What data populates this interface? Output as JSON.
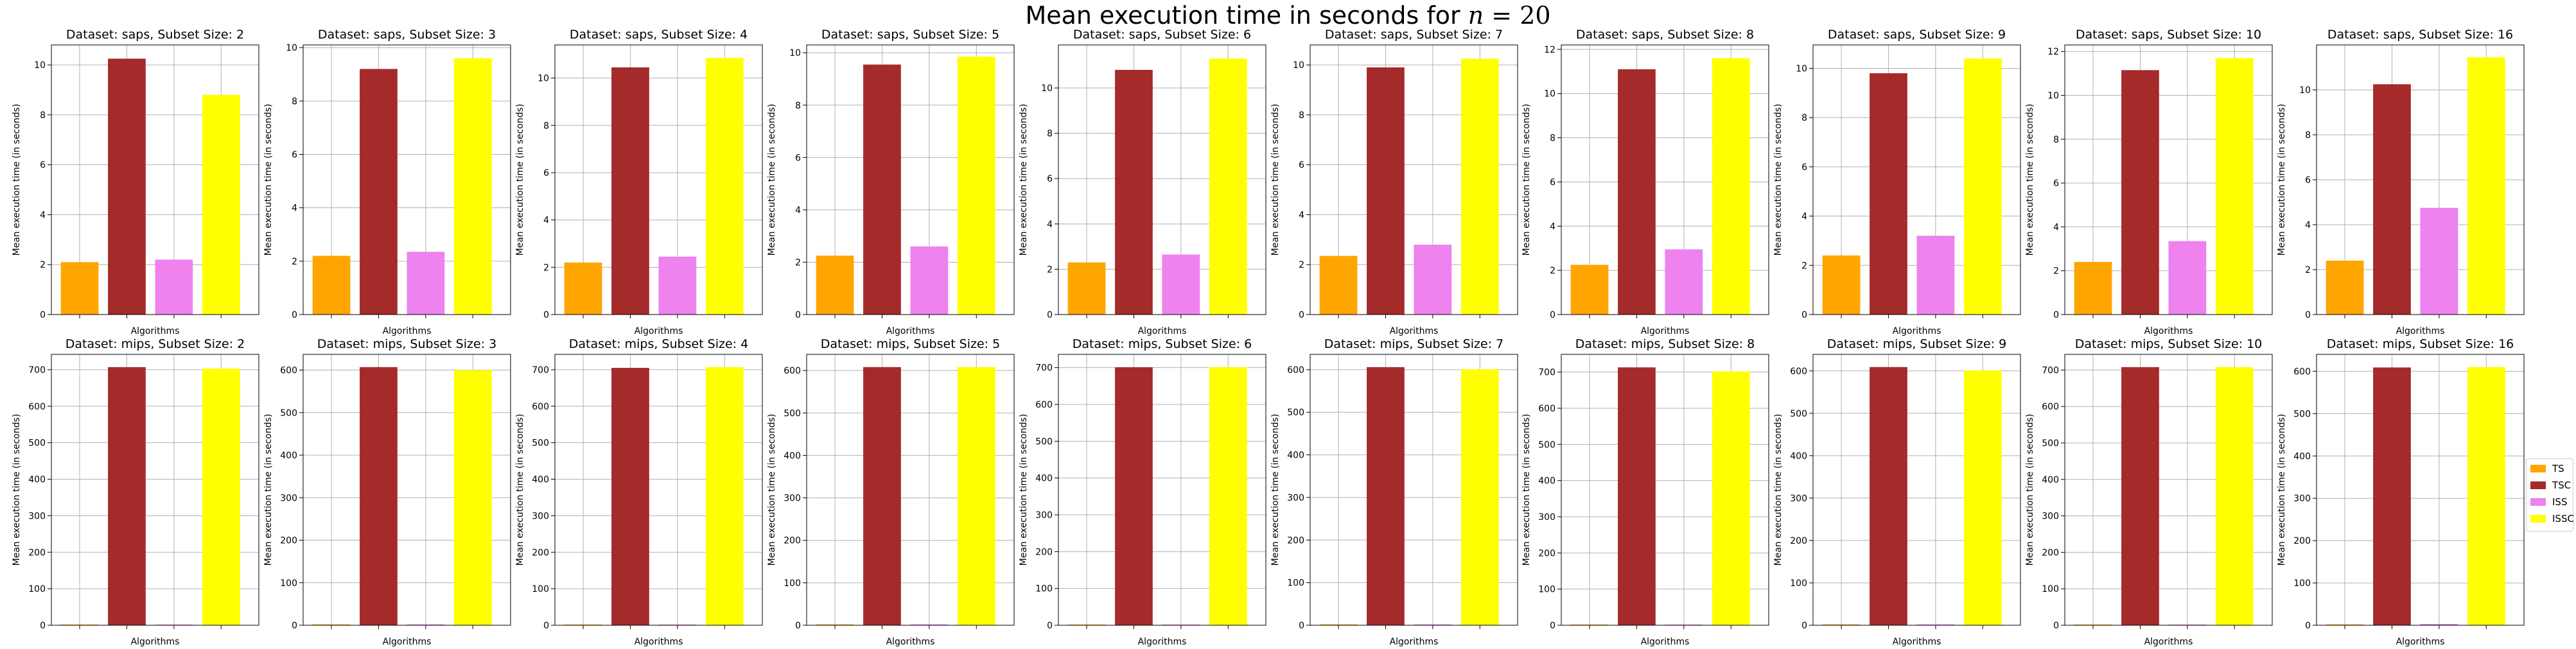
{
  "figure": {
    "title_prefix": "Mean execution time in seconds for ",
    "title_var": "n",
    "title_eq": " = ",
    "title_num": "20"
  },
  "legend": {
    "placement": "right-center",
    "items": [
      {
        "label": "TS",
        "color": "#FFA500"
      },
      {
        "label": "TSC",
        "color": "#A52A2A"
      },
      {
        "label": "ISS",
        "color": "#EE82EE"
      },
      {
        "label": "ISSC",
        "color": "#FFFF00"
      }
    ]
  },
  "chart_data": [
    {
      "type": "bar",
      "title": "Dataset: saps, Subset Size: 2",
      "xlabel": "Algorithms",
      "ylabel": "Mean execution time (in seconds)",
      "categories": [
        "TS",
        "TSC",
        "ISS",
        "ISSC"
      ],
      "values": [
        2.1,
        10.25,
        2.2,
        8.8
      ],
      "ylim": [
        0,
        10.8
      ],
      "yticks": [
        0,
        2,
        4,
        6,
        8,
        10
      ],
      "grid": true
    },
    {
      "type": "bar",
      "title": "Dataset: saps, Subset Size: 3",
      "xlabel": "Algorithms",
      "ylabel": "Mean execution time (in seconds)",
      "categories": [
        "TS",
        "TSC",
        "ISS",
        "ISSC"
      ],
      "values": [
        2.2,
        9.2,
        2.35,
        9.6
      ],
      "ylim": [
        0,
        10.1
      ],
      "yticks": [
        0,
        2,
        4,
        6,
        8,
        10
      ],
      "grid": true
    },
    {
      "type": "bar",
      "title": "Dataset: saps, Subset Size: 4",
      "xlabel": "Algorithms",
      "ylabel": "Mean execution time (in seconds)",
      "categories": [
        "TS",
        "TSC",
        "ISS",
        "ISSC"
      ],
      "values": [
        2.2,
        10.45,
        2.45,
        10.85
      ],
      "ylim": [
        0,
        11.4
      ],
      "yticks": [
        0,
        2,
        4,
        6,
        8,
        10
      ],
      "grid": true
    },
    {
      "type": "bar",
      "title": "Dataset: saps, Subset Size: 5",
      "xlabel": "Algorithms",
      "ylabel": "Mean execution time (in seconds)",
      "categories": [
        "TS",
        "TSC",
        "ISS",
        "ISSC"
      ],
      "values": [
        2.25,
        9.55,
        2.6,
        9.85
      ],
      "ylim": [
        0,
        10.3
      ],
      "yticks": [
        0,
        2,
        4,
        6,
        8,
        10
      ],
      "grid": true
    },
    {
      "type": "bar",
      "title": "Dataset: saps, Subset Size: 6",
      "xlabel": "Algorithms",
      "ylabel": "Mean execution time (in seconds)",
      "categories": [
        "TS",
        "TSC",
        "ISS",
        "ISSC"
      ],
      "values": [
        2.3,
        10.8,
        2.65,
        11.3
      ],
      "ylim": [
        0,
        11.9
      ],
      "yticks": [
        0,
        2,
        4,
        6,
        8,
        10
      ],
      "grid": true
    },
    {
      "type": "bar",
      "title": "Dataset: saps, Subset Size: 7",
      "xlabel": "Algorithms",
      "ylabel": "Mean execution time (in seconds)",
      "categories": [
        "TS",
        "TSC",
        "ISS",
        "ISSC"
      ],
      "values": [
        2.35,
        9.9,
        2.8,
        10.25
      ],
      "ylim": [
        0,
        10.8
      ],
      "yticks": [
        0,
        2,
        4,
        6,
        8,
        10
      ],
      "grid": true
    },
    {
      "type": "bar",
      "title": "Dataset: saps, Subset Size: 8",
      "xlabel": "Algorithms",
      "ylabel": "Mean execution time (in seconds)",
      "categories": [
        "TS",
        "TSC",
        "ISS",
        "ISSC"
      ],
      "values": [
        2.25,
        11.1,
        2.95,
        11.6
      ],
      "ylim": [
        0,
        12.2
      ],
      "yticks": [
        0,
        2,
        4,
        6,
        8,
        10,
        12
      ],
      "grid": true
    },
    {
      "type": "bar",
      "title": "Dataset: saps, Subset Size: 9",
      "xlabel": "Algorithms",
      "ylabel": "Mean execution time (in seconds)",
      "categories": [
        "TS",
        "TSC",
        "ISS",
        "ISSC"
      ],
      "values": [
        2.4,
        9.8,
        3.2,
        10.4
      ],
      "ylim": [
        0,
        10.95
      ],
      "yticks": [
        0,
        2,
        4,
        6,
        8,
        10
      ],
      "grid": true
    },
    {
      "type": "bar",
      "title": "Dataset: saps, Subset Size: 10",
      "xlabel": "Algorithms",
      "ylabel": "Mean execution time (in seconds)",
      "categories": [
        "TS",
        "TSC",
        "ISS",
        "ISSC"
      ],
      "values": [
        2.4,
        11.15,
        3.35,
        11.7
      ],
      "ylim": [
        0,
        12.3
      ],
      "yticks": [
        0,
        2,
        4,
        6,
        8,
        10,
        12
      ],
      "grid": true
    },
    {
      "type": "bar",
      "title": "Dataset: saps, Subset Size: 16",
      "xlabel": "Algorithms",
      "ylabel": "Mean execution time (in seconds)",
      "categories": [
        "TS",
        "TSC",
        "ISS",
        "ISSC"
      ],
      "values": [
        2.4,
        10.25,
        4.75,
        11.45
      ],
      "ylim": [
        0,
        12.0
      ],
      "yticks": [
        0,
        2,
        4,
        6,
        8,
        10
      ],
      "grid": true
    },
    {
      "type": "bar",
      "title": "Dataset: mips, Subset Size: 2",
      "xlabel": "Algorithms",
      "ylabel": "Mean execution time (in seconds)",
      "categories": [
        "TS",
        "TSC",
        "ISS",
        "ISSC"
      ],
      "values": [
        2,
        707,
        2,
        703
      ],
      "ylim": [
        0,
        742
      ],
      "yticks": [
        0,
        100,
        200,
        300,
        400,
        500,
        600,
        700
      ],
      "grid": true
    },
    {
      "type": "bar",
      "title": "Dataset: mips, Subset Size: 3",
      "xlabel": "Algorithms",
      "ylabel": "Mean execution time (in seconds)",
      "categories": [
        "TS",
        "TSC",
        "ISS",
        "ISSC"
      ],
      "values": [
        2,
        607,
        2,
        600
      ],
      "ylim": [
        0,
        637
      ],
      "yticks": [
        0,
        100,
        200,
        300,
        400,
        500,
        600
      ],
      "grid": true
    },
    {
      "type": "bar",
      "title": "Dataset: mips, Subset Size: 4",
      "xlabel": "Algorithms",
      "ylabel": "Mean execution time (in seconds)",
      "categories": [
        "TS",
        "TSC",
        "ISS",
        "ISSC"
      ],
      "values": [
        2,
        705,
        2,
        707
      ],
      "ylim": [
        0,
        742
      ],
      "yticks": [
        0,
        100,
        200,
        300,
        400,
        500,
        600,
        700
      ],
      "grid": true
    },
    {
      "type": "bar",
      "title": "Dataset: mips, Subset Size: 5",
      "xlabel": "Algorithms",
      "ylabel": "Mean execution time (in seconds)",
      "categories": [
        "TS",
        "TSC",
        "ISS",
        "ISSC"
      ],
      "values": [
        2,
        608,
        2,
        608
      ],
      "ylim": [
        0,
        638
      ],
      "yticks": [
        0,
        100,
        200,
        300,
        400,
        500,
        600
      ],
      "grid": true
    },
    {
      "type": "bar",
      "title": "Dataset: mips, Subset Size: 6",
      "xlabel": "Algorithms",
      "ylabel": "Mean execution time (in seconds)",
      "categories": [
        "TS",
        "TSC",
        "ISS",
        "ISSC"
      ],
      "values": [
        2,
        701,
        2,
        701
      ],
      "ylim": [
        0,
        736
      ],
      "yticks": [
        0,
        100,
        200,
        300,
        400,
        500,
        600,
        700
      ],
      "grid": true
    },
    {
      "type": "bar",
      "title": "Dataset: mips, Subset Size: 7",
      "xlabel": "Algorithms",
      "ylabel": "Mean execution time (in seconds)",
      "categories": [
        "TS",
        "TSC",
        "ISS",
        "ISSC"
      ],
      "values": [
        2,
        606,
        2,
        601
      ],
      "ylim": [
        0,
        636
      ],
      "yticks": [
        0,
        100,
        200,
        300,
        400,
        500,
        600
      ],
      "grid": true
    },
    {
      "type": "bar",
      "title": "Dataset: mips, Subset Size: 8",
      "xlabel": "Algorithms",
      "ylabel": "Mean execution time (in seconds)",
      "categories": [
        "TS",
        "TSC",
        "ISS",
        "ISSC"
      ],
      "values": [
        2,
        713,
        2,
        702
      ],
      "ylim": [
        0,
        749
      ],
      "yticks": [
        0,
        100,
        200,
        300,
        400,
        500,
        600,
        700
      ],
      "grid": true
    },
    {
      "type": "bar",
      "title": "Dataset: mips, Subset Size: 9",
      "xlabel": "Algorithms",
      "ylabel": "Mean execution time (in seconds)",
      "categories": [
        "TS",
        "TSC",
        "ISS",
        "ISSC"
      ],
      "values": [
        2,
        609,
        2,
        601
      ],
      "ylim": [
        0,
        639
      ],
      "yticks": [
        0,
        100,
        200,
        300,
        400,
        500,
        600
      ],
      "grid": true
    },
    {
      "type": "bar",
      "title": "Dataset: mips, Subset Size: 10",
      "xlabel": "Algorithms",
      "ylabel": "Mean execution time (in seconds)",
      "categories": [
        "TS",
        "TSC",
        "ISS",
        "ISSC"
      ],
      "values": [
        2,
        708,
        2,
        708
      ],
      "ylim": [
        0,
        743
      ],
      "yticks": [
        0,
        100,
        200,
        300,
        400,
        500,
        600,
        700
      ],
      "grid": true
    },
    {
      "type": "bar",
      "title": "Dataset: mips, Subset Size: 16",
      "xlabel": "Algorithms",
      "ylabel": "Mean execution time (in seconds)",
      "categories": [
        "TS",
        "TSC",
        "ISS",
        "ISSC"
      ],
      "values": [
        2,
        609,
        3,
        610
      ],
      "ylim": [
        0,
        640
      ],
      "yticks": [
        0,
        100,
        200,
        300,
        400,
        500,
        600
      ],
      "grid": true
    }
  ]
}
